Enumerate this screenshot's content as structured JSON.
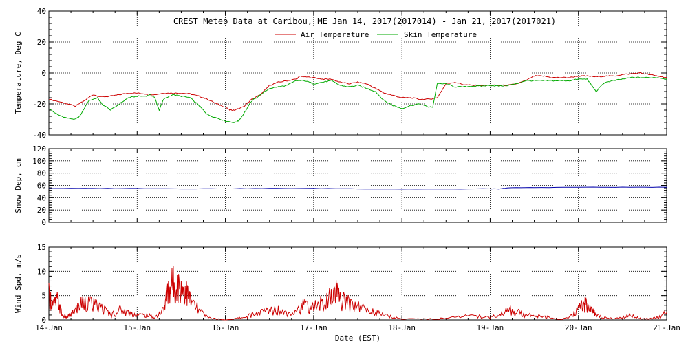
{
  "chart_data": [
    {
      "type": "line",
      "title": "CREST Meteo Data at Caribou, ME   Jan 14, 2017(2017014) - Jan 21, 2017(2017021)",
      "ylabel": "Temperature, Deg C",
      "ylim": [
        -40,
        40
      ],
      "yticks": [
        "-40",
        "-20",
        "0",
        "20",
        "40"
      ],
      "grid": true,
      "legend": "top-center",
      "series": [
        {
          "name": "Air Temperature",
          "color": "#cc0000",
          "x": [
            14.0,
            14.15,
            14.3,
            14.4,
            14.5,
            14.6,
            14.7,
            14.8,
            14.9,
            15.0,
            15.1,
            15.2,
            15.3,
            15.4,
            15.5,
            15.6,
            15.7,
            15.8,
            15.9,
            16.0,
            16.05,
            16.1,
            16.2,
            16.3,
            16.4,
            16.5,
            16.6,
            16.7,
            16.8,
            16.85,
            16.9,
            17.0,
            17.1,
            17.2,
            17.3,
            17.4,
            17.5,
            17.6,
            17.7,
            17.8,
            17.9,
            18.0,
            18.1,
            18.2,
            18.3,
            18.4,
            18.5,
            18.6,
            18.7,
            18.8,
            18.9,
            19.0,
            19.1,
            19.2,
            19.3,
            19.4,
            19.5,
            19.6,
            19.7,
            19.8,
            19.9,
            20.0,
            20.1,
            20.2,
            20.3,
            20.4,
            20.5,
            20.6,
            20.7,
            20.8,
            20.9,
            21.0
          ],
          "values": [
            -17,
            -19,
            -21.5,
            -18,
            -14,
            -15.5,
            -15,
            -14,
            -13,
            -13,
            -13.5,
            -14,
            -13,
            -13,
            -13,
            -13.5,
            -15,
            -17,
            -20,
            -22,
            -24,
            -24,
            -22,
            -17,
            -14,
            -8,
            -6,
            -5,
            -4,
            -2,
            -2.5,
            -3,
            -4,
            -4,
            -6,
            -7,
            -6,
            -7,
            -10,
            -13,
            -14.5,
            -16,
            -16,
            -17,
            -17,
            -16,
            -7,
            -6,
            -7.5,
            -8,
            -8,
            -8,
            -8,
            -8,
            -7,
            -5,
            -2,
            -2,
            -3,
            -3,
            -3,
            -2,
            -2,
            -2.5,
            -2,
            -2,
            -1,
            -0.5,
            0,
            -1,
            -2,
            -3
          ]
        },
        {
          "name": "Skin Temperature",
          "color": "#00aa00",
          "x": [
            14.0,
            14.1,
            14.2,
            14.3,
            14.35,
            14.45,
            14.55,
            14.6,
            14.7,
            14.8,
            14.9,
            15.0,
            15.1,
            15.15,
            15.2,
            15.25,
            15.3,
            15.4,
            15.5,
            15.6,
            15.7,
            15.75,
            15.8,
            15.9,
            16.0,
            16.1,
            16.15,
            16.2,
            16.3,
            16.4,
            16.5,
            16.6,
            16.7,
            16.8,
            16.9,
            17.0,
            17.1,
            17.2,
            17.3,
            17.4,
            17.5,
            17.6,
            17.7,
            17.8,
            17.9,
            18.0,
            18.1,
            18.2,
            18.3,
            18.35,
            18.4,
            18.5,
            18.6,
            18.7,
            18.8,
            18.9,
            19.0,
            19.1,
            19.2,
            19.3,
            19.4,
            19.5,
            19.6,
            19.7,
            19.8,
            19.9,
            20.0,
            20.1,
            20.15,
            20.2,
            20.3,
            20.4,
            20.5,
            20.6,
            20.7,
            20.8,
            20.9,
            21.0
          ],
          "values": [
            -23,
            -27,
            -29,
            -30,
            -28,
            -18,
            -16,
            -20,
            -24,
            -20,
            -16,
            -15,
            -15,
            -14,
            -16,
            -24,
            -17,
            -14,
            -15,
            -16,
            -21,
            -24,
            -27,
            -29,
            -31,
            -32,
            -31,
            -27,
            -18,
            -14,
            -10,
            -9,
            -8,
            -5,
            -5,
            -7,
            -6,
            -5,
            -8,
            -9,
            -8,
            -10,
            -12,
            -18,
            -21,
            -23,
            -21,
            -20,
            -22,
            -22,
            -7,
            -7,
            -9,
            -9,
            -8.5,
            -8.5,
            -8,
            -8.5,
            -8,
            -7,
            -5,
            -5,
            -5,
            -5,
            -5,
            -5,
            -4,
            -4,
            -8,
            -12,
            -6,
            -5,
            -4,
            -3,
            -3,
            -3,
            -3,
            -4
          ]
        }
      ]
    },
    {
      "type": "line",
      "ylabel": "Snow Dep, cm",
      "ylim": [
        0,
        120
      ],
      "yticks": [
        "0",
        "20",
        "40",
        "60",
        "80",
        "100",
        "120"
      ],
      "grid": true,
      "series": [
        {
          "color": "#0000aa",
          "x": [
            14.0,
            14.5,
            15.0,
            15.5,
            16.0,
            16.5,
            17.0,
            17.5,
            18.0,
            18.5,
            19.0,
            19.1,
            19.2,
            19.5,
            20.0,
            20.5,
            21.0
          ],
          "values": [
            55,
            55,
            55,
            54.5,
            54.5,
            55,
            55,
            54.5,
            54,
            54,
            54.5,
            54,
            56,
            56.5,
            57,
            57,
            57
          ]
        }
      ]
    },
    {
      "type": "line",
      "ylabel": "Wind Spd, m/s",
      "xlabel": "Date (EST)",
      "ylim": [
        0,
        15
      ],
      "yticks": [
        "0",
        "5",
        "10",
        "15"
      ],
      "grid": true,
      "categories": [
        "14-Jan",
        "15-Jan",
        "16-Jan",
        "17-Jan",
        "18-Jan",
        "19-Jan",
        "20-Jan",
        "21-Jan"
      ],
      "series": [
        {
          "color": "#cc0000",
          "x": [
            14.0,
            14.05,
            14.1,
            14.15,
            14.2,
            14.25,
            14.3,
            14.35,
            14.4,
            14.5,
            14.6,
            14.7,
            14.8,
            14.9,
            15.0,
            15.1,
            15.2,
            15.3,
            15.35,
            15.4,
            15.45,
            15.5,
            15.55,
            15.6,
            15.7,
            15.8,
            15.9,
            16.0,
            16.1,
            16.2,
            16.3,
            16.4,
            16.5,
            16.6,
            16.7,
            16.8,
            16.9,
            17.0,
            17.1,
            17.2,
            17.25,
            17.3,
            17.4,
            17.5,
            17.6,
            17.7,
            17.8,
            17.9,
            18.0,
            18.2,
            18.4,
            18.6,
            18.8,
            19.0,
            19.1,
            19.2,
            19.3,
            19.4,
            19.5,
            19.6,
            19.7,
            19.8,
            19.9,
            20.0,
            20.05,
            20.1,
            20.15,
            20.2,
            20.3,
            20.4,
            20.5,
            20.6,
            20.7,
            20.8,
            20.9,
            21.0
          ],
          "values": [
            5,
            3,
            4,
            1,
            0.5,
            1,
            2,
            3,
            4,
            3,
            2.5,
            1,
            2,
            1.5,
            1,
            1,
            0.5,
            2,
            6,
            7.5,
            7,
            6.5,
            6,
            4,
            2,
            0.5,
            0.2,
            0,
            0.2,
            0.5,
            1,
            1.5,
            2,
            2,
            1.5,
            2,
            3,
            2.5,
            3.5,
            4.5,
            5.5,
            4,
            3.5,
            3,
            2,
            1.5,
            1,
            0.5,
            0.2,
            0.2,
            0.2,
            0.5,
            1,
            0.5,
            1,
            2,
            1.5,
            1.2,
            1,
            0.8,
            0.3,
            0.1,
            0.5,
            2,
            3.5,
            3,
            2,
            1,
            0.5,
            0.2,
            0.5,
            1,
            0.3,
            0.2,
            0.5,
            1.5
          ]
        }
      ]
    }
  ]
}
